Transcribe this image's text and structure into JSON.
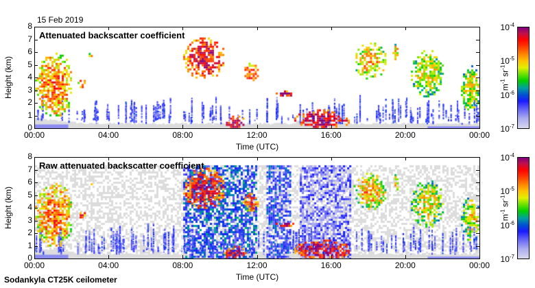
{
  "header": {
    "date": "15 Feb 2019"
  },
  "footer": {
    "instrument": "Sodankyla CT25K ceilometer"
  },
  "colors": {
    "low": "#d8d8ee",
    "blue": "#1a1aff",
    "green": "#00d000",
    "yellow": "#e0f000",
    "red": "#ff0000",
    "top": "#800080",
    "noise_gray": "#d8d8d8"
  },
  "chart_data": [
    {
      "type": "heatmap",
      "title": "Attenuated backscatter coefficient",
      "xlabel": "Time (UTC)",
      "ylabel": "Height (km)",
      "x_ticks": [
        "00:00",
        "04:00",
        "08:00",
        "12:00",
        "16:00",
        "20:00",
        "00:00"
      ],
      "y_ticks": [
        "0",
        "1",
        "2",
        "3",
        "4",
        "5",
        "6",
        "7",
        "8"
      ],
      "xlim_hours": [
        0,
        24
      ],
      "ylim_km": [
        0,
        8
      ],
      "colorbar": {
        "unit_base": "m",
        "unit_exp1": "-1",
        "unit_base2": "sr",
        "unit_exp2": "-1",
        "ticks": [
          {
            "base": "10",
            "exp": "-4"
          },
          {
            "base": "10",
            "exp": "-5"
          },
          {
            "base": "10",
            "exp": "-6"
          },
          {
            "base": "10",
            "exp": "-7"
          }
        ],
        "range_log10": [
          -7,
          -4
        ],
        "scale": "log"
      },
      "features": [
        {
          "t0": 0.0,
          "t1": 2.0,
          "h0": 1.0,
          "h1": 6.0,
          "level": -5.2
        },
        {
          "t0": 2.3,
          "t1": 2.7,
          "h0": 3.2,
          "h1": 4.0,
          "level": -5.0
        },
        {
          "t0": 2.9,
          "t1": 3.1,
          "h0": 5.5,
          "h1": 6.3,
          "level": -5.2
        },
        {
          "t0": 8.0,
          "t1": 10.2,
          "h0": 4.0,
          "h1": 7.2,
          "level": -4.8
        },
        {
          "t0": 11.2,
          "t1": 12.0,
          "h0": 3.8,
          "h1": 5.2,
          "level": -5.0
        },
        {
          "t0": 13.0,
          "t1": 14.0,
          "h0": 2.6,
          "h1": 3.0,
          "level": -4.6
        },
        {
          "t0": 10.2,
          "t1": 11.4,
          "h0": 0.0,
          "h1": 1.0,
          "level": -4.6
        },
        {
          "t0": 14.0,
          "t1": 17.0,
          "h0": 0.0,
          "h1": 1.5,
          "level": -4.6
        },
        {
          "t0": 17.2,
          "t1": 18.9,
          "h0": 4.0,
          "h1": 6.8,
          "level": -5.4
        },
        {
          "t0": 19.3,
          "t1": 19.6,
          "h0": 5.4,
          "h1": 6.7,
          "level": -5.4
        },
        {
          "t0": 20.3,
          "t1": 22.0,
          "h0": 2.6,
          "h1": 6.2,
          "level": -5.6
        },
        {
          "t0": 23.0,
          "t1": 24.0,
          "h0": 1.5,
          "h1": 5.0,
          "level": -5.6
        }
      ]
    },
    {
      "type": "heatmap",
      "title": "Raw attenuated backscatter coefficient",
      "xlabel": "Time (UTC)",
      "ylabel": "Height (km)",
      "x_ticks": [
        "00:00",
        "04:00",
        "08:00",
        "12:00",
        "16:00",
        "20:00",
        "00:00"
      ],
      "y_ticks": [
        "0",
        "1",
        "2",
        "3",
        "4",
        "5",
        "6",
        "7",
        "8"
      ],
      "xlim_hours": [
        0,
        24
      ],
      "ylim_km": [
        0,
        8
      ],
      "colorbar": {
        "unit_base": "m",
        "unit_exp1": "-1",
        "unit_base2": "sr",
        "unit_exp2": "-1",
        "ticks": [
          {
            "base": "10",
            "exp": "-4"
          },
          {
            "base": "10",
            "exp": "-5"
          },
          {
            "base": "10",
            "exp": "-6"
          },
          {
            "base": "10",
            "exp": "-7"
          }
        ],
        "range_log10": [
          -7,
          -4
        ],
        "scale": "log"
      },
      "noise_bands": [
        {
          "t0": 8.0,
          "t1": 12.0,
          "level": -6.3
        },
        {
          "t0": 12.5,
          "t1": 13.8,
          "level": -6.4
        },
        {
          "t0": 14.3,
          "t1": 17.0,
          "level": -6.7
        }
      ]
    }
  ]
}
